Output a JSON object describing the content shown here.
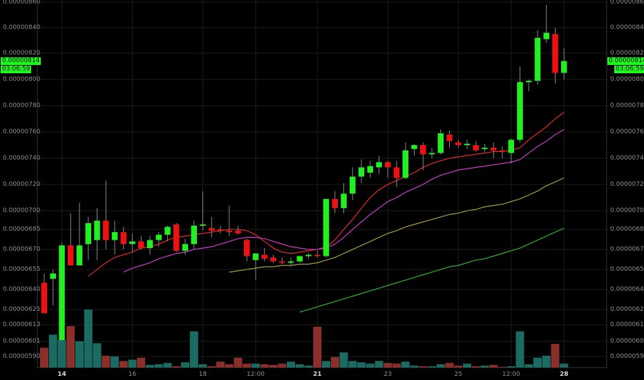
{
  "chart_data": {
    "type": "candlestick",
    "y_ticks_left": [
      "0.00000860",
      "0.00000840",
      "0.00000820",
      "0.00000800",
      "0.00000780",
      "0.00000760",
      "0.00000740",
      "0.00000720",
      "0.00000700",
      "0.00000685",
      "0.00000670",
      "0.00000655",
      "0.00000640",
      "0.00000625",
      "0.00000613",
      "0.00000601",
      "0.00000590"
    ],
    "y_ticks_right": [
      "0.00000860",
      "0.00000840",
      "0.00000820",
      "0.00000800",
      "0.00000780",
      "0.00000760",
      "0.00000740",
      "0.00000720",
      "0.00000700",
      "0.00000685",
      "0.00000670",
      "0.00000655",
      "0.00000640",
      "0.00000625",
      "0.00000613",
      "0.00000601",
      "0.00000590"
    ],
    "x_ticks": [
      {
        "label": "14",
        "bold": true,
        "index": 2
      },
      {
        "label": "16",
        "bold": false,
        "index": 10
      },
      {
        "label": "18",
        "bold": false,
        "index": 18
      },
      {
        "label": "12:00",
        "bold": false,
        "index": 24
      },
      {
        "label": "21",
        "bold": true,
        "index": 31
      },
      {
        "label": "23",
        "bold": false,
        "index": 39
      },
      {
        "label": "25",
        "bold": false,
        "index": 47
      },
      {
        "label": "12:00",
        "bold": false,
        "index": 53
      },
      {
        "label": "28",
        "bold": true,
        "index": 59
      }
    ],
    "ylim": [
      5.83e-06,
      8.62e-06
    ],
    "price_badge": "0.00000814",
    "timer_badge": "03:06:59",
    "candles": [
      {
        "open": 6.45,
        "high": 6.52,
        "low": 6.22,
        "close": 6.22
      },
      {
        "open": 6.48,
        "high": 6.55,
        "low": 6.28,
        "close": 6.52
      },
      {
        "open": 6.02,
        "high": 6.75,
        "low": 6.01,
        "close": 6.73
      },
      {
        "open": 6.73,
        "high": 6.98,
        "low": 6.58,
        "close": 6.58
      },
      {
        "open": 6.58,
        "high": 7.06,
        "low": 6.58,
        "close": 6.73
      },
      {
        "open": 6.74,
        "high": 6.95,
        "low": 6.62,
        "close": 6.9
      },
      {
        "open": 6.77,
        "high": 7.02,
        "low": 6.62,
        "close": 6.92
      },
      {
        "open": 6.92,
        "high": 7.23,
        "low": 6.7,
        "close": 6.77
      },
      {
        "open": 6.77,
        "high": 6.92,
        "low": 6.66,
        "close": 6.83
      },
      {
        "open": 6.83,
        "high": 6.87,
        "low": 6.7,
        "close": 6.74
      },
      {
        "open": 6.74,
        "high": 6.82,
        "low": 6.68,
        "close": 6.76
      },
      {
        "open": 6.76,
        "high": 6.8,
        "low": 6.7,
        "close": 6.71
      },
      {
        "open": 6.71,
        "high": 6.8,
        "low": 6.66,
        "close": 6.77
      },
      {
        "open": 6.77,
        "high": 6.83,
        "low": 6.72,
        "close": 6.81
      },
      {
        "open": 6.81,
        "high": 6.88,
        "low": 6.76,
        "close": 6.87
      },
      {
        "open": 6.89,
        "high": 6.9,
        "low": 6.68,
        "close": 6.69
      },
      {
        "open": 6.69,
        "high": 6.78,
        "low": 6.66,
        "close": 6.74
      },
      {
        "open": 6.74,
        "high": 6.92,
        "low": 6.7,
        "close": 6.88
      },
      {
        "open": 6.88,
        "high": 7.15,
        "low": 6.84,
        "close": 6.89
      },
      {
        "open": 6.86,
        "high": 6.95,
        "low": 6.79,
        "close": 6.84
      },
      {
        "open": 6.85,
        "high": 6.88,
        "low": 6.82,
        "close": 6.84
      },
      {
        "open": 6.84,
        "high": 7.04,
        "low": 6.8,
        "close": 6.83
      },
      {
        "open": 6.84,
        "high": 6.88,
        "low": 6.81,
        "close": 6.82
      },
      {
        "open": 6.77,
        "high": 6.78,
        "low": 6.61,
        "close": 6.65
      },
      {
        "open": 6.62,
        "high": 6.67,
        "low": 6.47,
        "close": 6.67
      },
      {
        "open": 6.66,
        "high": 6.71,
        "low": 6.61,
        "close": 6.63
      },
      {
        "open": 6.64,
        "high": 6.66,
        "low": 6.6,
        "close": 6.61
      },
      {
        "open": 6.61,
        "high": 6.64,
        "low": 6.59,
        "close": 6.6
      },
      {
        "open": 6.61,
        "high": 6.64,
        "low": 6.57,
        "close": 6.61
      },
      {
        "open": 6.61,
        "high": 6.65,
        "low": 6.6,
        "close": 6.65
      },
      {
        "open": 6.65,
        "high": 6.67,
        "low": 6.63,
        "close": 6.66
      },
      {
        "open": 6.66,
        "high": 6.69,
        "low": 6.64,
        "close": 6.65
      },
      {
        "open": 6.65,
        "high": 7.09,
        "low": 6.64,
        "close": 7.09
      },
      {
        "open": 7.09,
        "high": 7.15,
        "low": 6.98,
        "close": 7.02
      },
      {
        "open": 7.02,
        "high": 7.21,
        "low": 6.98,
        "close": 7.13
      },
      {
        "open": 7.13,
        "high": 7.33,
        "low": 7.08,
        "close": 7.26
      },
      {
        "open": 7.26,
        "high": 7.39,
        "low": 7.21,
        "close": 7.33
      },
      {
        "open": 7.29,
        "high": 7.38,
        "low": 7.25,
        "close": 7.34
      },
      {
        "open": 7.33,
        "high": 7.42,
        "low": 7.28,
        "close": 7.37
      },
      {
        "open": 7.37,
        "high": 7.38,
        "low": 7.25,
        "close": 7.33
      },
      {
        "open": 7.33,
        "high": 7.38,
        "low": 7.18,
        "close": 7.25
      },
      {
        "open": 7.25,
        "high": 7.52,
        "low": 7.24,
        "close": 7.46
      },
      {
        "open": 7.47,
        "high": 7.51,
        "low": 7.42,
        "close": 7.5
      },
      {
        "open": 7.5,
        "high": 7.52,
        "low": 7.31,
        "close": 7.43
      },
      {
        "open": 7.43,
        "high": 7.48,
        "low": 7.4,
        "close": 7.44
      },
      {
        "open": 7.44,
        "high": 7.62,
        "low": 7.43,
        "close": 7.59
      },
      {
        "open": 7.58,
        "high": 7.61,
        "low": 7.48,
        "close": 7.53
      },
      {
        "open": 7.52,
        "high": 7.54,
        "low": 7.48,
        "close": 7.5
      },
      {
        "open": 7.5,
        "high": 7.54,
        "low": 7.47,
        "close": 7.51
      },
      {
        "open": 7.5,
        "high": 7.53,
        "low": 7.45,
        "close": 7.46
      },
      {
        "open": 7.47,
        "high": 7.51,
        "low": 7.45,
        "close": 7.48
      },
      {
        "open": 7.48,
        "high": 7.52,
        "low": 7.4,
        "close": 7.46
      },
      {
        "open": 7.46,
        "high": 7.49,
        "low": 7.4,
        "close": 7.45
      },
      {
        "open": 7.44,
        "high": 7.55,
        "low": 7.36,
        "close": 7.54
      },
      {
        "open": 7.54,
        "high": 8.1,
        "low": 7.52,
        "close": 7.98
      },
      {
        "open": 7.98,
        "high": 8.0,
        "low": 7.91,
        "close": 7.99
      },
      {
        "open": 7.99,
        "high": 8.38,
        "low": 7.96,
        "close": 8.32
      },
      {
        "open": 8.31,
        "high": 8.58,
        "low": 8.28,
        "close": 8.36
      },
      {
        "open": 8.35,
        "high": 8.4,
        "low": 7.97,
        "close": 8.05
      },
      {
        "open": 8.05,
        "high": 8.24,
        "low": 8.0,
        "close": 8.14
      }
    ],
    "ma_lines": [
      {
        "color": "#ff2b2b",
        "values": [
          null,
          null,
          null,
          null,
          null,
          6.5,
          6.55,
          6.6,
          6.64,
          6.66,
          6.68,
          6.71,
          6.72,
          6.74,
          6.77,
          6.79,
          6.8,
          6.81,
          6.82,
          6.83,
          6.84,
          6.85,
          6.85,
          6.84,
          6.81,
          6.76,
          6.71,
          6.68,
          6.67,
          6.68,
          6.69,
          6.7,
          6.72,
          6.77,
          6.85,
          6.93,
          7.02,
          7.1,
          7.16,
          7.2,
          7.23,
          7.26,
          7.29,
          7.33,
          7.36,
          7.38,
          7.4,
          7.41,
          7.42,
          7.43,
          7.44,
          7.45,
          7.45,
          7.46,
          7.48,
          7.54,
          7.59,
          7.64,
          7.7,
          7.75
        ]
      },
      {
        "color": "#e040e0",
        "values": [
          null,
          null,
          null,
          null,
          null,
          null,
          null,
          null,
          null,
          6.53,
          6.56,
          6.58,
          6.6,
          6.63,
          6.65,
          6.67,
          6.68,
          6.7,
          6.71,
          6.72,
          6.74,
          6.76,
          6.78,
          6.79,
          6.79,
          6.78,
          6.76,
          6.74,
          6.72,
          6.71,
          6.7,
          6.7,
          6.71,
          6.74,
          6.79,
          6.85,
          6.91,
          6.97,
          7.02,
          7.07,
          7.1,
          7.14,
          7.17,
          7.2,
          7.24,
          7.27,
          7.29,
          7.31,
          7.32,
          7.33,
          7.34,
          7.35,
          7.36,
          7.37,
          7.39,
          7.44,
          7.49,
          7.53,
          7.58,
          7.62
        ]
      },
      {
        "color": "#b8b040",
        "values": [
          null,
          null,
          null,
          null,
          null,
          null,
          null,
          null,
          null,
          null,
          null,
          null,
          null,
          null,
          null,
          null,
          null,
          null,
          null,
          null,
          null,
          6.53,
          6.54,
          6.55,
          6.56,
          6.57,
          6.57,
          6.58,
          6.58,
          6.59,
          6.59,
          6.6,
          6.62,
          6.64,
          6.67,
          6.7,
          6.73,
          6.76,
          6.79,
          6.82,
          6.84,
          6.87,
          6.89,
          6.91,
          6.93,
          6.95,
          6.97,
          6.98,
          7.0,
          7.01,
          7.03,
          7.04,
          7.05,
          7.07,
          7.09,
          7.12,
          7.15,
          7.19,
          7.22,
          7.25
        ]
      },
      {
        "color": "#2ec82e",
        "values": [
          null,
          null,
          null,
          null,
          null,
          null,
          null,
          null,
          null,
          null,
          null,
          null,
          null,
          null,
          null,
          null,
          null,
          null,
          null,
          null,
          null,
          null,
          null,
          null,
          null,
          null,
          null,
          null,
          null,
          6.23,
          6.25,
          6.27,
          6.29,
          6.31,
          6.33,
          6.35,
          6.37,
          6.39,
          6.41,
          6.43,
          6.45,
          6.47,
          6.49,
          6.51,
          6.53,
          6.55,
          6.57,
          6.58,
          6.6,
          6.62,
          6.63,
          6.65,
          6.67,
          6.69,
          6.71,
          6.74,
          6.77,
          6.8,
          6.83,
          6.86
        ]
      }
    ],
    "volumes": [
      0.3,
      0.5,
      0.42,
      0.63,
      0.4,
      0.88,
      0.37,
      0.18,
      0.17,
      0.1,
      0.12,
      0.15,
      0.04,
      0.05,
      0.07,
      0.02,
      0.08,
      0.55,
      0.05,
      0.02,
      0.09,
      0.05,
      0.15,
      0.06,
      0.06,
      0.05,
      0.04,
      0.06,
      0.09,
      0.05,
      0.03,
      0.62,
      0.1,
      0.16,
      0.23,
      0.1,
      0.08,
      0.06,
      0.1,
      0.07,
      0.06,
      0.09,
      0.03,
      0.02,
      0.02,
      0.05,
      0.07,
      0.03,
      0.06,
      0.02,
      0.03,
      0.04,
      0.01,
      0.02,
      0.55,
      0.05,
      0.15,
      0.18,
      0.36,
      0.06
    ],
    "volume_scale": 8.5
  }
}
